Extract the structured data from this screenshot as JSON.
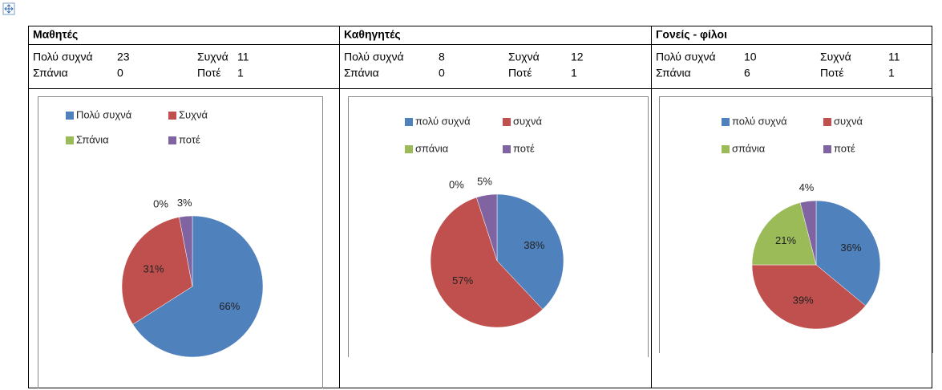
{
  "table": {
    "columns": [
      {
        "title": "Μαθητές",
        "counts": [
          {
            "label": "Πολύ συχνά",
            "value": 23
          },
          {
            "label": "Συχνά",
            "value": 11
          },
          {
            "label": "Σπάνια",
            "value": 0
          },
          {
            "label": "Ποτέ",
            "value": 1
          }
        ],
        "chart_data": {
          "type": "pie",
          "categories": [
            "Πολύ συχνά",
            "Συχνά",
            "Σπάνια",
            "ποτέ"
          ],
          "values": [
            66,
            31,
            0,
            3
          ],
          "value_labels": [
            "66%",
            "31%",
            "0%",
            "3%"
          ],
          "colors": [
            "#4f81bd",
            "#c0504d",
            "#9bbb59",
            "#8064a2"
          ],
          "legend": "top"
        }
      },
      {
        "title": "Καθηγητές",
        "counts": [
          {
            "label": "Πολύ συχνά",
            "value": 8
          },
          {
            "label": "Συχνά",
            "value": 12
          },
          {
            "label": "Σπάνια",
            "value": 0
          },
          {
            "label": "Ποτέ",
            "value": 1
          }
        ],
        "chart_data": {
          "type": "pie",
          "categories": [
            "πολύ συχνά",
            "συχνά",
            "σπάνια",
            "ποτέ"
          ],
          "values": [
            38,
            57,
            0,
            5
          ],
          "value_labels": [
            "38%",
            "57%",
            "0%",
            "5%"
          ],
          "colors": [
            "#4f81bd",
            "#c0504d",
            "#9bbb59",
            "#8064a2"
          ],
          "legend": "top"
        }
      },
      {
        "title": "Γονείς - φίλοι",
        "counts": [
          {
            "label": "Πολύ συχνά",
            "value": 10
          },
          {
            "label": "Συχνά",
            "value": 11
          },
          {
            "label": "Σπάνια",
            "value": 6
          },
          {
            "label": "Ποτέ",
            "value": 1
          }
        ],
        "chart_data": {
          "type": "pie",
          "categories": [
            "πολύ συχνά",
            "συχνά",
            "σπάνια",
            "ποτέ"
          ],
          "values": [
            36,
            39,
            21,
            4
          ],
          "value_labels": [
            "36%",
            "39%",
            "21%",
            "4%"
          ],
          "colors": [
            "#4f81bd",
            "#c0504d",
            "#9bbb59",
            "#8064a2"
          ],
          "legend": "top"
        }
      }
    ]
  }
}
